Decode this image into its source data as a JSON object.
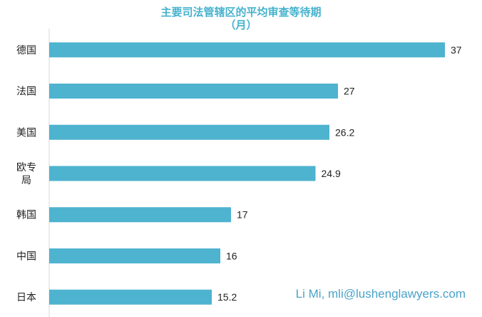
{
  "colors": {
    "bar": "#4eb3cf",
    "title": "#46b2cd",
    "text": "#222222",
    "axis": "#d9d9d9",
    "credit": "#4aa3c8"
  },
  "credit": "Li Mi, mli@lushenglawyers.com",
  "chart_data": {
    "type": "bar",
    "orientation": "horizontal",
    "title": "主要司法管辖区的平均审查等待期",
    "subtitle": "（月）",
    "categories": [
      "德国",
      "法国",
      "美国",
      "欧专局",
      "韩国",
      "中国",
      "日本"
    ],
    "category_lines": [
      [
        "德国"
      ],
      [
        "法国"
      ],
      [
        "美国"
      ],
      [
        "欧专",
        "局"
      ],
      [
        "韩国"
      ],
      [
        "中国"
      ],
      [
        "日本"
      ]
    ],
    "values": [
      37,
      27,
      26.2,
      24.9,
      17,
      16,
      15.2
    ],
    "value_labels": [
      "37",
      "27",
      "26.2",
      "24.9",
      "17",
      "16",
      "15.2"
    ],
    "xlim": [
      0,
      37
    ],
    "grid": false,
    "legend": "none"
  }
}
